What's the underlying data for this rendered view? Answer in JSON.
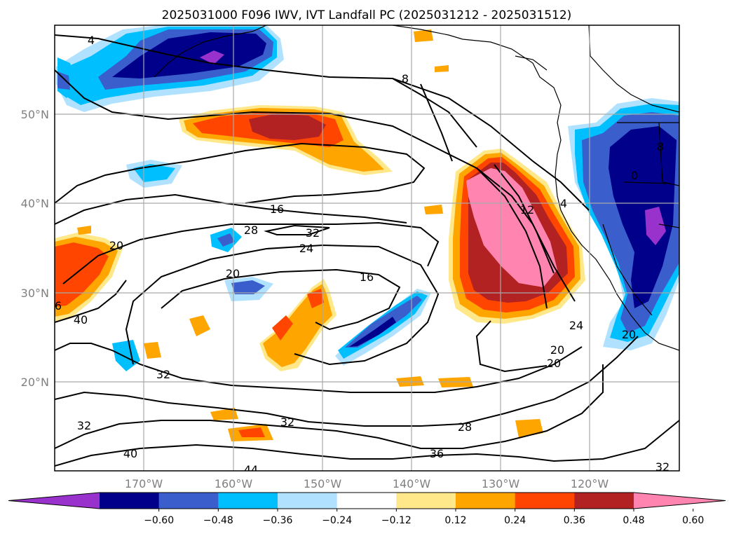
{
  "title": "2025031000 F096 IWV, IVT Landfall PC (2025031212 - 2025031512)",
  "map": {
    "region": "Northeast Pacific / North America west coast",
    "projection": "equirectangular",
    "lon_range": [
      -180,
      -110
    ],
    "lat_range": [
      10,
      60
    ],
    "gridlines": true,
    "lon_ticks": [
      {
        "value": -170,
        "label": "170°W"
      },
      {
        "value": -160,
        "label": "160°W"
      },
      {
        "value": -150,
        "label": "150°W"
      },
      {
        "value": -140,
        "label": "140°W"
      },
      {
        "value": -130,
        "label": "130°W"
      },
      {
        "value": -120,
        "label": "120°W"
      }
    ],
    "lat_ticks": [
      {
        "value": 20,
        "label": "20°N"
      },
      {
        "value": 30,
        "label": "30°N"
      },
      {
        "value": 40,
        "label": "40°N"
      },
      {
        "value": 50,
        "label": "50°N"
      }
    ],
    "grid_color": "#a9a9a9"
  },
  "colorbar": {
    "extend": "both",
    "levels": [
      "−0.60",
      "−0.48",
      "−0.36",
      "−0.24",
      "−0.12",
      "0.12",
      "0.24",
      "0.36",
      "0.48",
      "0.60"
    ],
    "colors": [
      "#9932cc",
      "#00008b",
      "#3a5fcd",
      "#00bfff",
      "#b0e2ff",
      "#ffffff",
      "#ffe88a",
      "#ffa500",
      "#ff4500",
      "#b22222",
      "#ff85b0"
    ]
  },
  "contour_labels": [
    "4",
    "8",
    "12",
    "16",
    "20",
    "24",
    "28",
    "32",
    "36",
    "40",
    "44",
    "4",
    "8",
    "20",
    "32",
    "32",
    "28",
    "20",
    "16",
    "20",
    "32",
    "40",
    "28",
    "16",
    "24",
    "32",
    "36",
    "20",
    "32",
    "6",
    "0"
  ]
}
